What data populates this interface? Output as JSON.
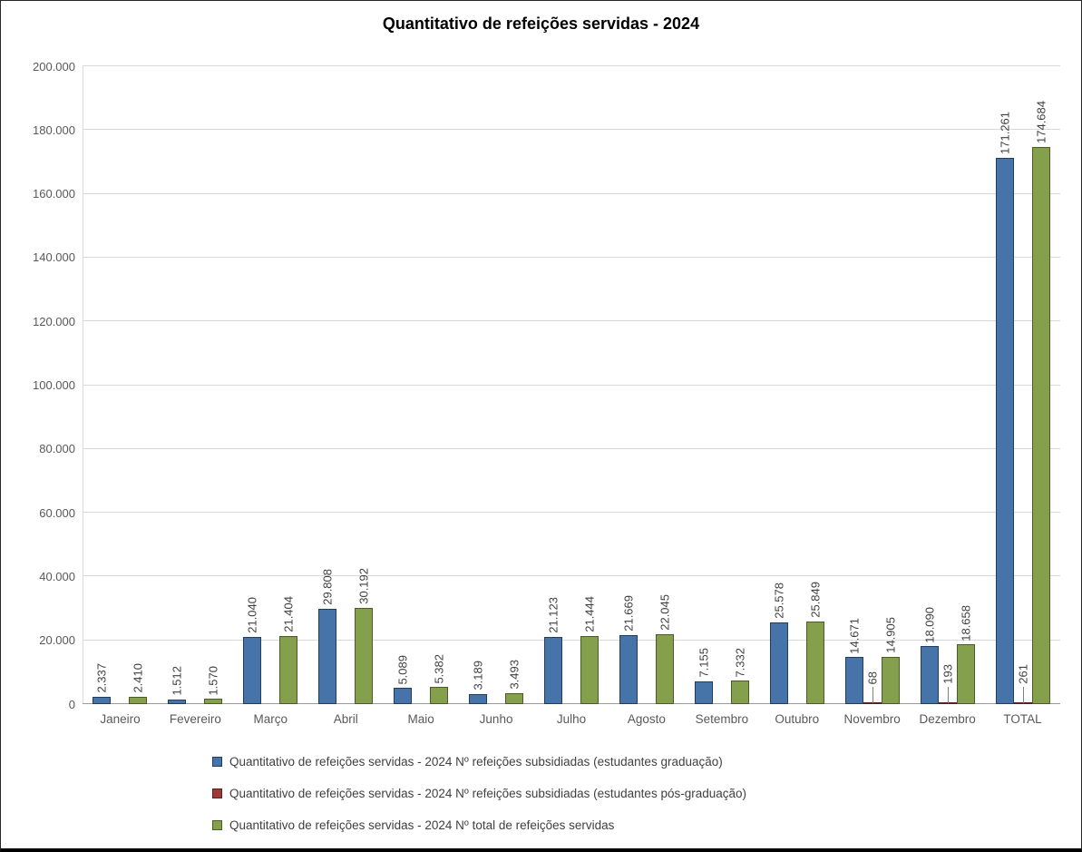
{
  "title": "Quantitativo de refeições servidas - 2024",
  "chart_data": {
    "type": "bar",
    "title": "Quantitativo de refeições servidas - 2024",
    "xlabel": "",
    "ylabel": "",
    "categories": [
      "Janeiro",
      "Fevereiro",
      "Março",
      "Abril",
      "Maio",
      "Junho",
      "Julho",
      "Agosto",
      "Setembro",
      "Outubro",
      "Novembro",
      "Dezembro",
      "TOTAL"
    ],
    "series": [
      {
        "name": "Quantitativo de refeições servidas - 2024 Nº refeições subsidiadas (estudantes graduação)",
        "color": "#4674a9",
        "border_color": "#1f3c61",
        "values": [
          2337,
          1512,
          21040,
          29808,
          5089,
          3189,
          21123,
          21669,
          7155,
          25578,
          14671,
          18090,
          171261
        ],
        "labels": [
          "2.337",
          "1.512",
          "21.040",
          "29.808",
          "5.089",
          "3.189",
          "21.123",
          "21.669",
          "7.155",
          "25.578",
          "14.671",
          "18.090",
          "171.261"
        ]
      },
      {
        "name": "Quantitativo de refeições servidas - 2024 Nº refeições subsidiadas (estudantes pós-graduação)",
        "color": "#9e3a38",
        "border_color": "#5e1f1e",
        "values": [
          0,
          0,
          0,
          0,
          0,
          0,
          0,
          0,
          0,
          0,
          68,
          193,
          261
        ],
        "labels": [
          null,
          null,
          null,
          null,
          null,
          null,
          null,
          null,
          null,
          null,
          "68",
          "193",
          "261"
        ]
      },
      {
        "name": "Quantitativo de refeições servidas - 2024 Nº total de refeições servidas",
        "color": "#84a04c",
        "border_color": "#4a5b27",
        "values": [
          2410,
          1570,
          21404,
          30192,
          5382,
          3493,
          21444,
          22045,
          7332,
          25849,
          14905,
          18658,
          174684
        ],
        "labels": [
          "2.410",
          "1.570",
          "21.404",
          "30.192",
          "5.382",
          "3.493",
          "21.444",
          "22.045",
          "7.332",
          "25.849",
          "14.905",
          "18.658",
          "174.684"
        ]
      }
    ],
    "ylim": [
      0,
      200000
    ],
    "ytick_interval": 20000,
    "ytick_labels": [
      "0",
      "20.000",
      "40.000",
      "60.000",
      "80.000",
      "100.000",
      "120.000",
      "140.000",
      "160.000",
      "180.000",
      "200.000"
    ],
    "grid": true,
    "legend_position": "bottom"
  }
}
